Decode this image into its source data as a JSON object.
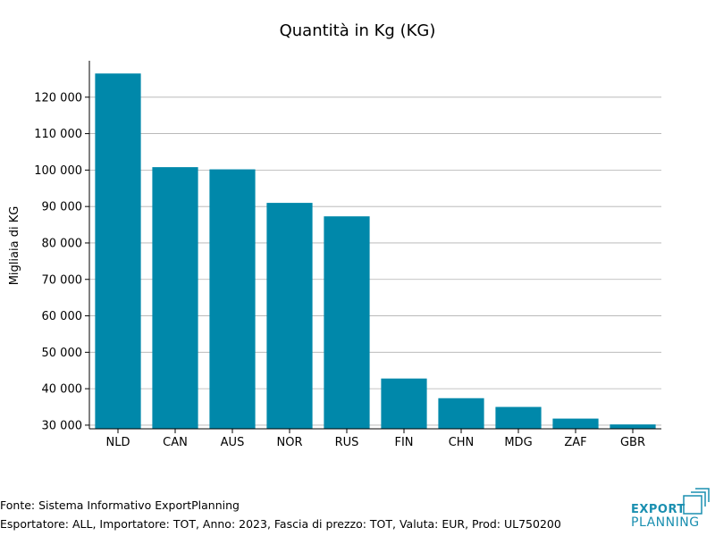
{
  "chart_data": {
    "type": "bar",
    "title": "Quantità in Kg (KG)",
    "ylabel": "Migliaia di KG",
    "xlabel": "",
    "categories": [
      "NLD",
      "CAN",
      "AUS",
      "NOR",
      "RUS",
      "FIN",
      "CHN",
      "MDG",
      "ZAF",
      "GBR"
    ],
    "values": [
      126500,
      100800,
      100200,
      91000,
      87300,
      42800,
      37400,
      35000,
      31800,
      30200
    ],
    "ylim": [
      29000,
      130000
    ],
    "yticks": [
      30000,
      40000,
      50000,
      60000,
      70000,
      80000,
      90000,
      100000,
      110000,
      120000
    ],
    "ytick_labels": [
      "30 000",
      "40 000",
      "50 000",
      "60 000",
      "70 000",
      "80 000",
      "90 000",
      "100 000",
      "110 000",
      "120 000"
    ],
    "grid": true,
    "bar_color": "#0088aa",
    "grid_color": "#b0b0b0"
  },
  "footer": {
    "source": "Fonte: Sistema Informativo ExportPlanning",
    "details": "Esportatore: ALL, Importatore: TOT, Anno: 2023, Fascia di prezzo: TOT, Valuta: EUR, Prod: UL750200"
  },
  "logo": {
    "line1": "EXPORT",
    "line2": "PLANNING",
    "color": "#1a8fb0"
  }
}
